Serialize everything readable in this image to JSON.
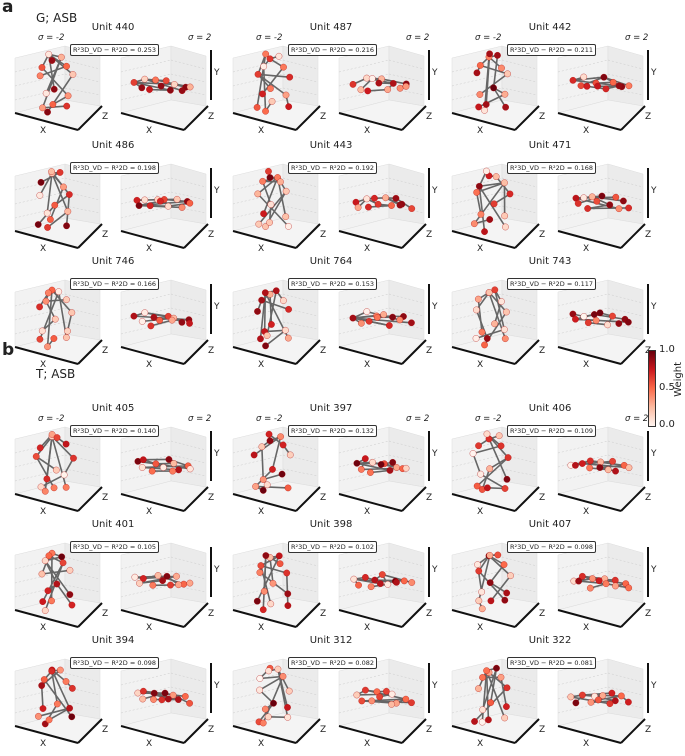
{
  "panels": [
    {
      "letter": "a",
      "title": "G; ASB",
      "units": [
        {
          "title": "Unit 440",
          "value": "0.253"
        },
        {
          "title": "Unit 487",
          "value": "0.216"
        },
        {
          "title": "Unit 442",
          "value": "0.211"
        },
        {
          "title": "Unit 486",
          "value": "0.198"
        },
        {
          "title": "Unit 443",
          "value": "0.192"
        },
        {
          "title": "Unit 471",
          "value": "0.168"
        },
        {
          "title": "Unit 746",
          "value": "0.166"
        },
        {
          "title": "Unit 764",
          "value": "0.153"
        },
        {
          "title": "Unit 743",
          "value": "0.117"
        }
      ]
    },
    {
      "letter": "b",
      "title": "T; ASB",
      "units": [
        {
          "title": "Unit 405",
          "value": "0.140"
        },
        {
          "title": "Unit 397",
          "value": "0.132"
        },
        {
          "title": "Unit 406",
          "value": "0.109"
        },
        {
          "title": "Unit 401",
          "value": "0.105"
        },
        {
          "title": "Unit 398",
          "value": "0.102"
        },
        {
          "title": "Unit 407",
          "value": "0.098"
        },
        {
          "title": "Unit 394",
          "value": "0.098"
        },
        {
          "title": "Unit 312",
          "value": "0.082"
        },
        {
          "title": "Unit 322",
          "value": "0.081"
        }
      ]
    }
  ],
  "labels": {
    "sigma_left": "σ = -2",
    "sigma_right": "σ = 2",
    "metric_prefix": "R²3D_VD − R²2D = ",
    "axis_x": "X",
    "axis_y": "Y",
    "axis_z": "Z"
  },
  "colorbar": {
    "label": "Weight",
    "ticks": [
      "1.0",
      "0.5",
      "0.0"
    ],
    "range": [
      0,
      1
    ],
    "colormap": "Reds"
  },
  "colors": {
    "low": "#fff5f0",
    "mid": "#fb6a4a",
    "high": "#67000d"
  }
}
